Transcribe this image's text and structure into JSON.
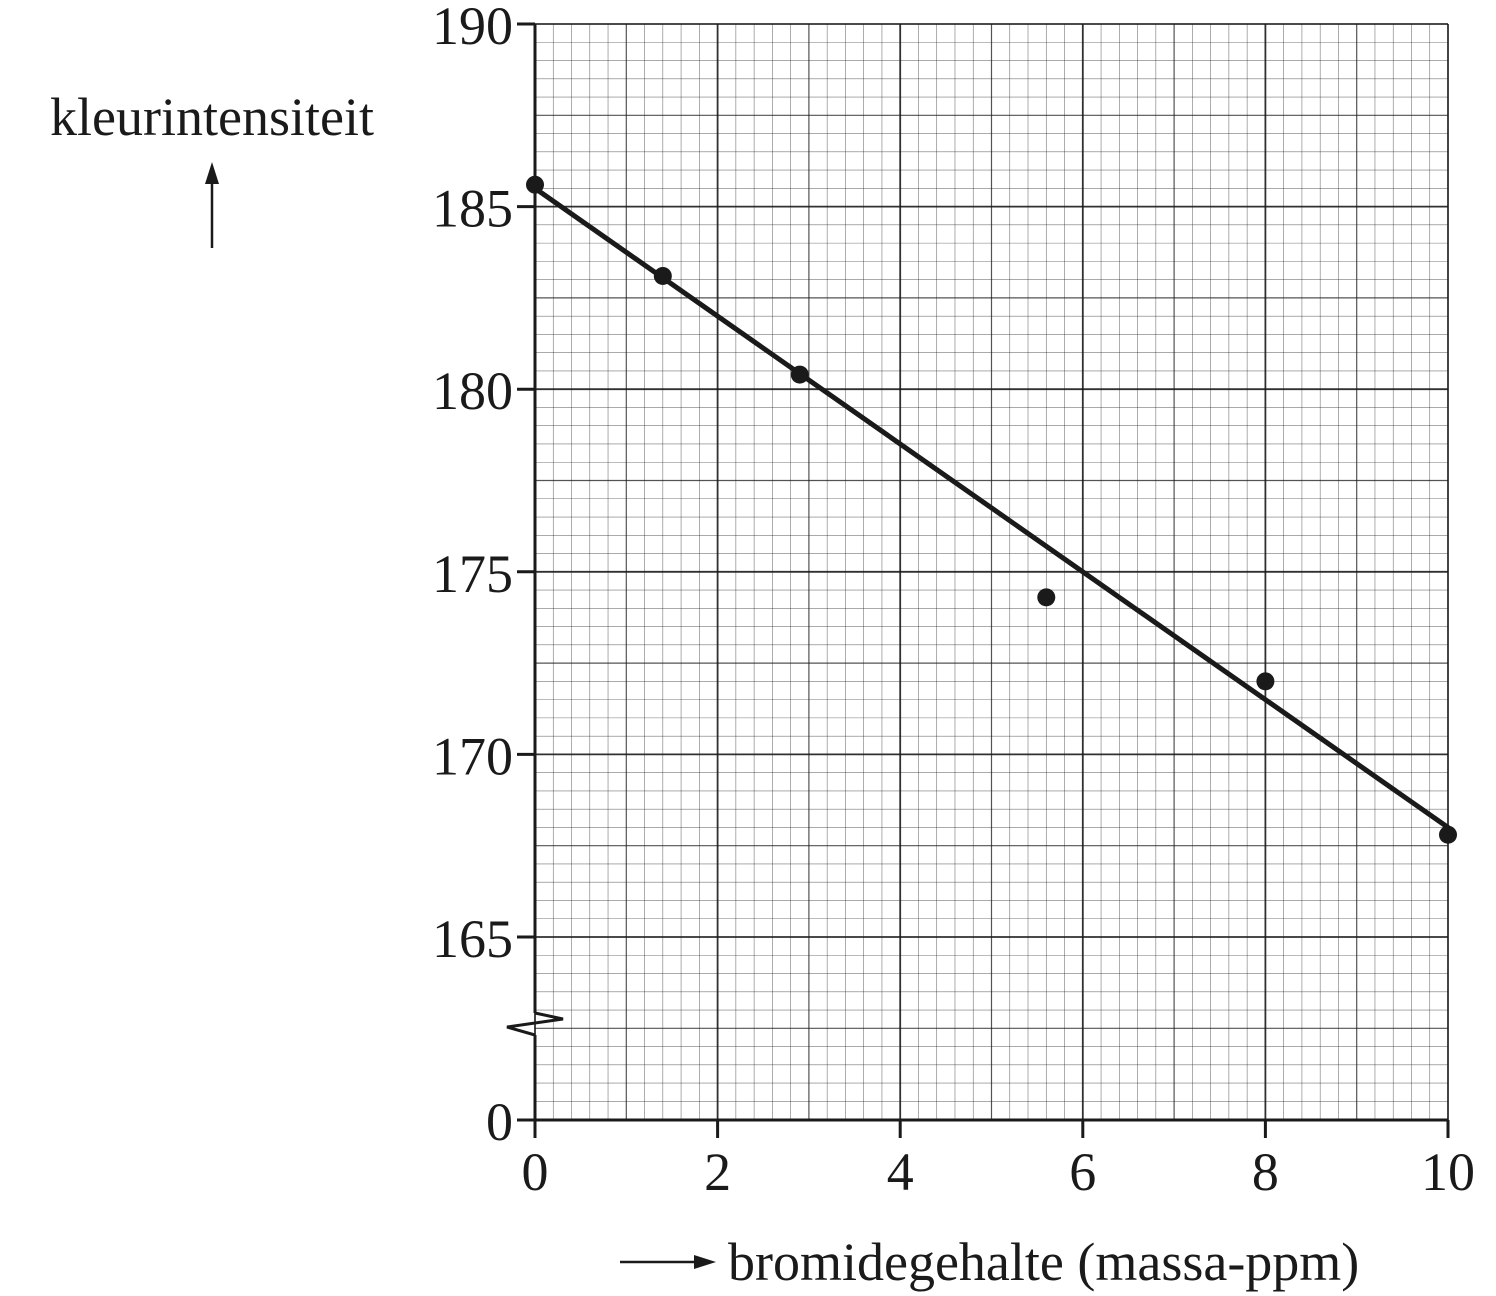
{
  "chart_data": {
    "type": "scatter",
    "xlabel": "bromidegehalte (massa-ppm)",
    "ylabel": "kleurintensiteit",
    "xlim": [
      0,
      10
    ],
    "ylim": [
      160,
      190
    ],
    "y_axis_break": true,
    "y_axis_origin_label": "0",
    "x_ticks": [
      "0",
      "2",
      "4",
      "6",
      "8",
      "10"
    ],
    "y_ticks": [
      "0",
      "165",
      "170",
      "175",
      "180",
      "185",
      "190"
    ],
    "grid": true,
    "series": [
      {
        "points": [
          {
            "x": 0.0,
            "y": 185.6
          },
          {
            "x": 1.4,
            "y": 183.1
          },
          {
            "x": 2.9,
            "y": 180.4
          },
          {
            "x": 5.6,
            "y": 174.3
          },
          {
            "x": 8.0,
            "y": 172.0
          },
          {
            "x": 10.0,
            "y": 167.8
          }
        ]
      }
    ],
    "trendline": {
      "x": [
        0,
        10
      ],
      "y": [
        185.5,
        168.0
      ]
    },
    "colors": {
      "ink": "#1a1a1a",
      "grid": "#1a1a1a"
    }
  }
}
